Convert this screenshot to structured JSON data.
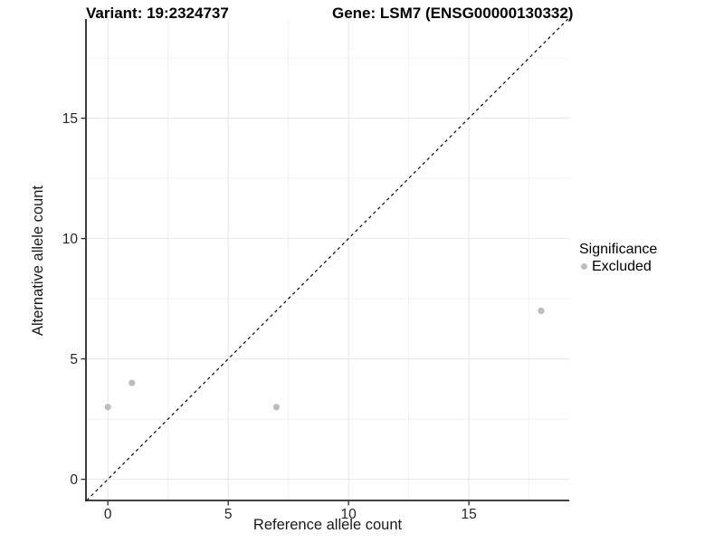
{
  "chart_data": {
    "type": "scatter",
    "title_left": "Variant: 19:2324737",
    "title_right": "Gene: LSM7 (ENSG00000130332)",
    "xlabel": "Reference allele count",
    "ylabel": "Alternative allele count",
    "x_ticks": [
      0,
      5,
      10,
      15
    ],
    "y_ticks": [
      0,
      5,
      10,
      15
    ],
    "x_minor": [
      2.5,
      7.5,
      12.5,
      17.5
    ],
    "y_minor": [
      2.5,
      7.5,
      12.5,
      17.5
    ],
    "xlim": [
      -0.91,
      19.17
    ],
    "ylim": [
      -0.88,
      19.12
    ],
    "grid": true,
    "identity_line": {
      "style": "dashed",
      "from": -0.88,
      "to": 19.12,
      "color": "#1a1a1a"
    },
    "series": [
      {
        "name": "Excluded",
        "color": "#bdbdbd",
        "points": [
          {
            "x": 0,
            "y": 3
          },
          {
            "x": 1,
            "y": 4
          },
          {
            "x": 7,
            "y": 3
          },
          {
            "x": 18,
            "y": 7
          }
        ]
      }
    ],
    "legend": {
      "title": "Significance",
      "position": "right",
      "items": [
        {
          "label": "Excluded",
          "color": "#bdbdbd"
        }
      ]
    },
    "colors": {
      "point": "#bdbdbd",
      "grid_major": "#e6e6e6",
      "grid_minor": "#f2f2f2",
      "axis_line": "#262626",
      "tick_text": "#262626",
      "background": "#ffffff"
    }
  }
}
